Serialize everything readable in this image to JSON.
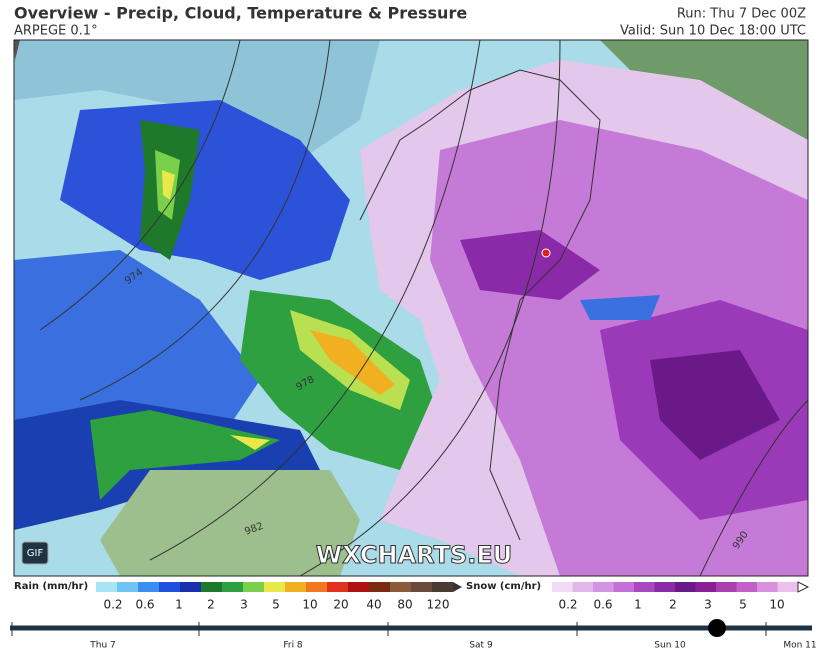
{
  "header": {
    "title": "Overview - Precip, Cloud, Temperature & Pressure",
    "model": "ARPEGE 0.1°",
    "run": "Run: Thu 7 Dec 00Z",
    "valid": "Valid: Sun 10 Dec 18:00 UTC"
  },
  "map": {
    "gif_button": "GIF",
    "watermark": "WXCHARTS.EU",
    "isobar_labels": [
      "974",
      "978",
      "982",
      "990"
    ]
  },
  "rain_legend": {
    "title": "Rain (mm/hr)",
    "labels": [
      "0.2",
      "0.6",
      "1",
      "2",
      "3",
      "5",
      "10",
      "20",
      "40",
      "80",
      "120"
    ]
  },
  "snow_legend": {
    "title": "Snow (cm/hr)",
    "labels": [
      "0.2",
      "0.6",
      "1",
      "2",
      "3",
      "5",
      "10"
    ]
  },
  "timeline": {
    "labels": [
      "Thu 7",
      "Fri 8",
      "Sat 9",
      "Sun 10",
      "Mon 11"
    ]
  }
}
